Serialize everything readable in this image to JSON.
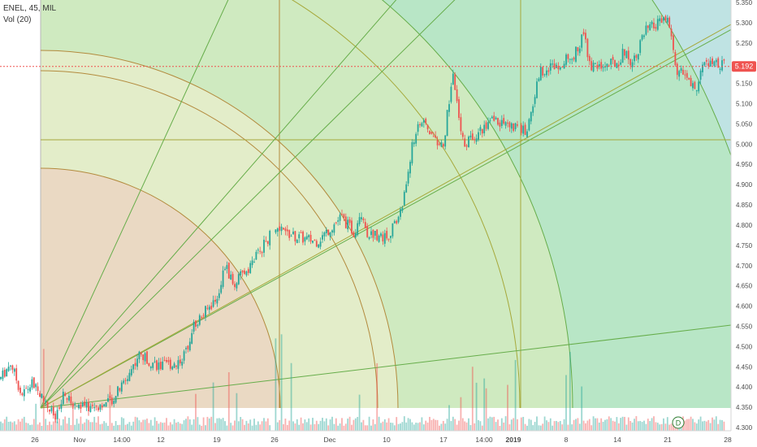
{
  "header": {
    "symbol_line": "ENEL, 45, MIL",
    "volume_indicator": "Vol (20)"
  },
  "chart_data": {
    "type": "candlestick",
    "title": "",
    "ylim": [
      4.28,
      5.36
    ],
    "y_ticks": [
      4.3,
      4.35,
      4.4,
      4.45,
      4.5,
      4.55,
      4.6,
      4.65,
      4.7,
      4.75,
      4.8,
      4.85,
      4.9,
      4.95,
      5.0,
      5.05,
      5.1,
      5.15,
      5.2,
      5.25,
      5.3,
      5.35
    ],
    "x_tick_labels": [
      "26",
      "Nov",
      "14:00",
      "12",
      "19",
      "26",
      "Dec",
      "10",
      "17",
      "14:00",
      "2019",
      "8",
      "14",
      "21",
      "28"
    ],
    "last_price": 5.192,
    "last_price_label": "5.192",
    "grid": false,
    "legend": "none",
    "series_path": [
      {
        "x": "Oct 23",
        "y": 4.42
      },
      {
        "x": "Oct 24",
        "y": 4.46
      },
      {
        "x": "Oct 25",
        "y": 4.38
      },
      {
        "x": "Oct 26",
        "y": 4.41
      },
      {
        "x": "Oct 29",
        "y": 4.32
      },
      {
        "x": "Oct 30",
        "y": 4.38
      },
      {
        "x": "Oct 31",
        "y": 4.36
      },
      {
        "x": "Nov 2",
        "y": 4.35
      },
      {
        "x": "Nov 5",
        "y": 4.36
      },
      {
        "x": "Nov 7",
        "y": 4.41
      },
      {
        "x": "Nov 9",
        "y": 4.48
      },
      {
        "x": "Nov 12",
        "y": 4.45
      },
      {
        "x": "Nov 14",
        "y": 4.46
      },
      {
        "x": "Nov 15",
        "y": 4.48
      },
      {
        "x": "Nov 16",
        "y": 4.55
      },
      {
        "x": "Nov 19",
        "y": 4.62
      },
      {
        "x": "Nov 20",
        "y": 4.7
      },
      {
        "x": "Nov 21",
        "y": 4.65
      },
      {
        "x": "Nov 23",
        "y": 4.7
      },
      {
        "x": "Nov 26",
        "y": 4.79
      },
      {
        "x": "Nov 28",
        "y": 4.77
      },
      {
        "x": "Nov 30",
        "y": 4.76
      },
      {
        "x": "Dec 3",
        "y": 4.82
      },
      {
        "x": "Dec 5",
        "y": 4.78
      },
      {
        "x": "Dec 6",
        "y": 4.84
      },
      {
        "x": "Dec 7",
        "y": 4.78
      },
      {
        "x": "Dec 10",
        "y": 4.77
      },
      {
        "x": "Dec 11",
        "y": 4.8
      },
      {
        "x": "Dec 12",
        "y": 4.85
      },
      {
        "x": "Dec 13",
        "y": 4.98
      },
      {
        "x": "Dec 14",
        "y": 5.06
      },
      {
        "x": "Dec 17",
        "y": 4.99
      },
      {
        "x": "Dec 18",
        "y": 5.1
      },
      {
        "x": "Dec 19",
        "y": 5.18
      },
      {
        "x": "Dec 20",
        "y": 5.06
      },
      {
        "x": "Dec 21",
        "y": 5.0
      },
      {
        "x": "Dec 27",
        "y": 5.06
      },
      {
        "x": "Jan 2",
        "y": 5.03
      },
      {
        "x": "Jan 3",
        "y": 5.1
      },
      {
        "x": "Jan 4",
        "y": 5.18
      },
      {
        "x": "Jan 7",
        "y": 5.2
      },
      {
        "x": "Jan 9",
        "y": 5.22
      },
      {
        "x": "Jan 10",
        "y": 5.27
      },
      {
        "x": "Jan 11",
        "y": 5.19
      },
      {
        "x": "Jan 14",
        "y": 5.2
      },
      {
        "x": "Jan 15",
        "y": 5.23
      },
      {
        "x": "Jan 16",
        "y": 5.2
      },
      {
        "x": "Jan 18",
        "y": 5.28
      },
      {
        "x": "Jan 21",
        "y": 5.31
      },
      {
        "x": "Jan 22",
        "y": 5.18
      },
      {
        "x": "Jan 23",
        "y": 5.17
      },
      {
        "x": "Jan 24",
        "y": 5.13
      },
      {
        "x": "Jan 25",
        "y": 5.2
      },
      {
        "x": "Jan 28",
        "y": 5.192
      }
    ],
    "volume_ylim": [
      0,
      1
    ]
  },
  "colors": {
    "up_candle": "#26a69a",
    "down_candle": "#ef5350",
    "last_price_line": "#ef5350",
    "fan_zone_1": "#ead9c3",
    "fan_zone_2": "#e3edc9",
    "fan_zone_3": "#cfeac0",
    "fan_zone_4": "#b8e6c6",
    "fan_zone_5": "#bfe3e3",
    "fan_line_brown": "#b38a3d",
    "fan_line_olive": "#a6a83a",
    "fan_line_green": "#66ad4a",
    "axis_text": "#4a4a4a"
  },
  "icons": {
    "dividend_marker": "D"
  }
}
